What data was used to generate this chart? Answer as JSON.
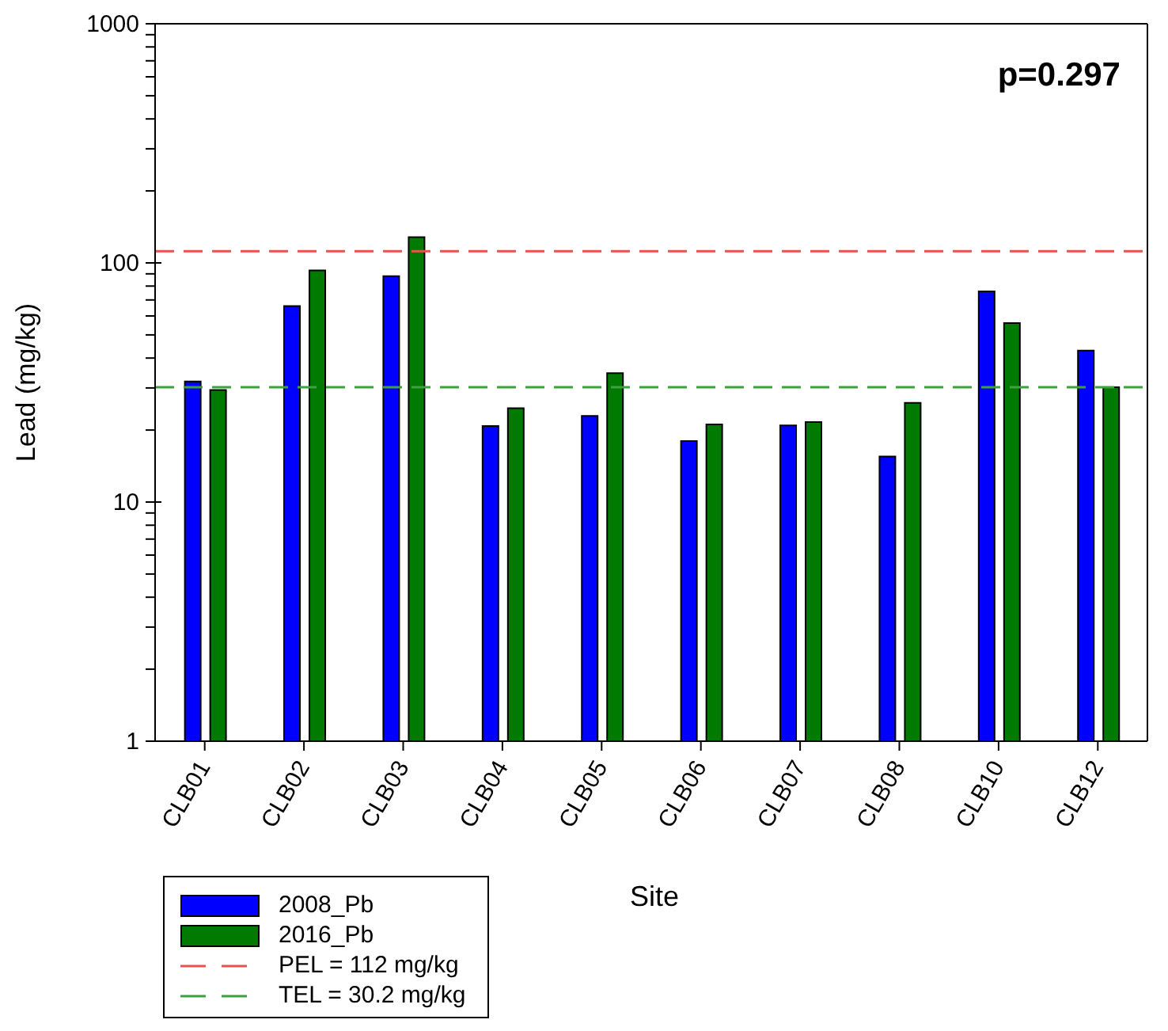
{
  "chart_data": {
    "type": "bar",
    "xlabel": "Site",
    "ylabel": "Lead (mg/kg)",
    "categories": [
      "CLB01",
      "CLB02",
      "CLB03",
      "CLB04",
      "CLB05",
      "CLB06",
      "CLB07",
      "CLB08",
      "CLB10",
      "CLB12"
    ],
    "series": [
      {
        "name": "2008_Pb",
        "color": "#0000ff",
        "values": [
          31.9,
          66,
          88,
          20.8,
          22.9,
          18,
          20.9,
          15.5,
          76,
          43
        ]
      },
      {
        "name": "2016_Pb",
        "color": "#007a00",
        "values": [
          29.4,
          93,
          128,
          24.7,
          34.6,
          21.1,
          21.6,
          26,
          56,
          30.2
        ]
      }
    ],
    "log": true,
    "ylim": [
      1,
      1000
    ],
    "yticks": [
      1,
      {
        "value": 2,
        "label": null
      },
      {
        "value": 3,
        "label": null
      },
      {
        "value": 4,
        "label": null
      },
      {
        "value": 5,
        "label": null
      },
      {
        "value": 6,
        "label": null
      },
      {
        "value": 7,
        "label": null
      },
      {
        "value": 8,
        "label": null
      },
      {
        "value": 9,
        "label": null
      },
      10,
      {
        "value": 20,
        "label": null
      },
      {
        "value": 30,
        "label": null
      },
      {
        "value": 40,
        "label": null
      },
      {
        "value": 50,
        "label": null
      },
      {
        "value": 60,
        "label": null
      },
      {
        "value": 70,
        "label": null
      },
      {
        "value": 80,
        "label": null
      },
      {
        "value": 90,
        "label": null
      },
      100,
      {
        "value": 200,
        "label": null
      },
      {
        "value": 300,
        "label": null
      },
      {
        "value": 400,
        "label": null
      },
      {
        "value": 500,
        "label": null
      },
      {
        "value": 600,
        "label": null
      },
      {
        "value": 700,
        "label": null
      },
      {
        "value": 800,
        "label": null
      },
      {
        "value": 900,
        "label": null
      },
      1000
    ],
    "ref_lines": [
      {
        "axis": "y",
        "value": 112,
        "label": "PEL = 112 mg/kg",
        "color": "#e8534e",
        "line_style": "dashed"
      },
      {
        "axis": "y",
        "value": 30.2,
        "label": "TEL = 30.2 mg/kg",
        "color": "#3fa03f",
        "line_style": "dashed"
      }
    ],
    "annotations": [
      "p=0.297"
    ],
    "legend": "bottom left"
  }
}
